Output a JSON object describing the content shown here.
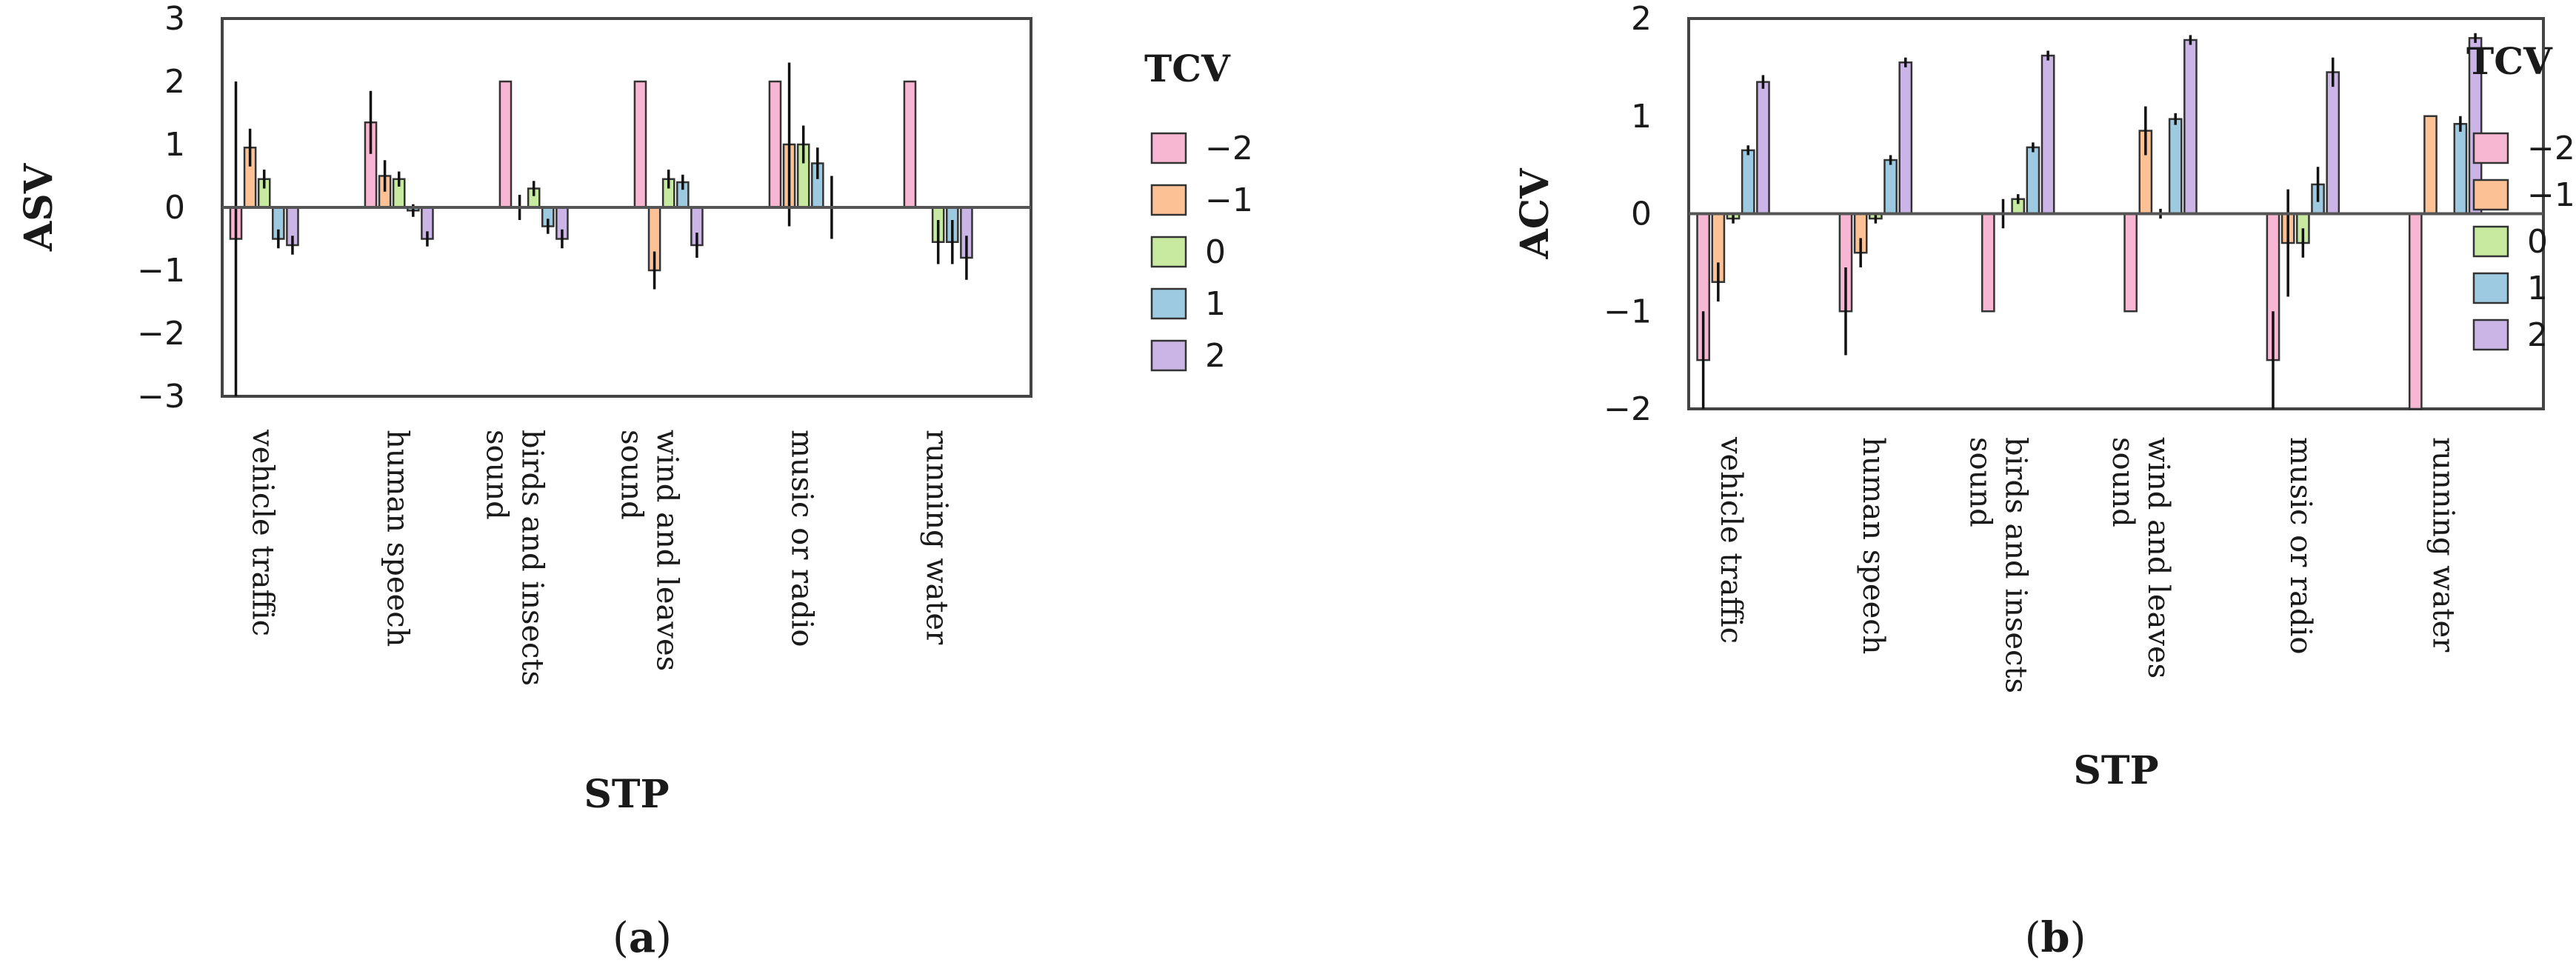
{
  "colors": {
    "-2": "#f7b6d2",
    "-1": "#fdc196",
    "0": "#c7e9a0",
    "1": "#9ecae1",
    "2": "#cbb4e6"
  },
  "chart_data": [
    {
      "type": "bar",
      "panel_label_parts": [
        "(",
        "a",
        ")"
      ],
      "ylabel": "ASV",
      "xlabel": "STP",
      "ylim": [
        -3,
        3
      ],
      "yticks": [
        3,
        2,
        1,
        0,
        -1,
        -2,
        -3
      ],
      "categories": [
        [
          "vehicle traffic"
        ],
        [
          "human speech"
        ],
        [
          "birds and insects",
          "sound"
        ],
        [
          "wind and leaves",
          "sound"
        ],
        [
          "music or radio"
        ],
        [
          "running water"
        ]
      ],
      "legend_title": "TCV",
      "series": [
        {
          "name": "−2",
          "key": "-2",
          "values": [
            -0.5,
            1.35,
            2.0,
            2.0,
            2.0,
            2.0
          ],
          "err": [
            2.5,
            0.5,
            0,
            0,
            0,
            0
          ]
        },
        {
          "name": "−1",
          "key": "-1",
          "values": [
            0.95,
            0.5,
            0,
            -1.0,
            1.0,
            0
          ],
          "err": [
            0.3,
            0.25,
            0.2,
            0.3,
            1.3,
            0
          ]
        },
        {
          "name": "0",
          "key": "0",
          "values": [
            0.45,
            0.45,
            0.3,
            0.45,
            1.0,
            -0.55
          ],
          "err": [
            0.15,
            0.12,
            0.12,
            0.15,
            0.3,
            0.35
          ]
        },
        {
          "name": "1",
          "key": "1",
          "values": [
            -0.5,
            -0.05,
            -0.3,
            0.4,
            0.7,
            -0.55
          ],
          "err": [
            0.15,
            0.1,
            0.12,
            0.12,
            0.25,
            0.35
          ]
        },
        {
          "name": "2",
          "key": "2",
          "values": [
            -0.6,
            -0.5,
            -0.5,
            -0.6,
            0.0,
            -0.8
          ],
          "err": [
            0.15,
            0.12,
            0.15,
            0.2,
            0.5,
            0.35
          ]
        }
      ]
    },
    {
      "type": "bar",
      "panel_label_parts": [
        "(",
        "b",
        ")"
      ],
      "ylabel": "ACV",
      "xlabel": "STP",
      "ylim": [
        -2,
        2
      ],
      "yticks": [
        2,
        1,
        0,
        -1,
        -2
      ],
      "categories": [
        [
          "vehicle traffic"
        ],
        [
          "human speech"
        ],
        [
          "birds and insects",
          "sound"
        ],
        [
          "wind and leaves",
          "sound"
        ],
        [
          "music or radio"
        ],
        [
          "running water"
        ]
      ],
      "legend_title": "TCV",
      "series": [
        {
          "name": "−2",
          "key": "-2",
          "values": [
            -1.5,
            -1.0,
            -1.0,
            -1.0,
            -1.5,
            -2.0
          ],
          "err": [
            0.5,
            0.45,
            0,
            0,
            0.5,
            0
          ]
        },
        {
          "name": "−1",
          "key": "-1",
          "values": [
            -0.7,
            -0.4,
            0.0,
            0.85,
            -0.3,
            1.0
          ],
          "err": [
            0.2,
            0.15,
            0.15,
            0.25,
            0.55,
            0
          ]
        },
        {
          "name": "0",
          "key": "0",
          "values": [
            -0.05,
            -0.05,
            0.15,
            0.0,
            -0.3,
            0.0
          ],
          "err": [
            0.05,
            0.05,
            0.05,
            0.05,
            0.15,
            0
          ]
        },
        {
          "name": "1",
          "key": "1",
          "values": [
            0.65,
            0.55,
            0.68,
            0.97,
            0.3,
            0.92
          ],
          "err": [
            0.05,
            0.05,
            0.05,
            0.06,
            0.18,
            0.08
          ]
        },
        {
          "name": "2",
          "key": "2",
          "values": [
            1.35,
            1.55,
            1.62,
            1.78,
            1.45,
            1.8
          ],
          "err": [
            0.07,
            0.05,
            0.05,
            0.05,
            0.15,
            0.05
          ]
        }
      ]
    }
  ]
}
